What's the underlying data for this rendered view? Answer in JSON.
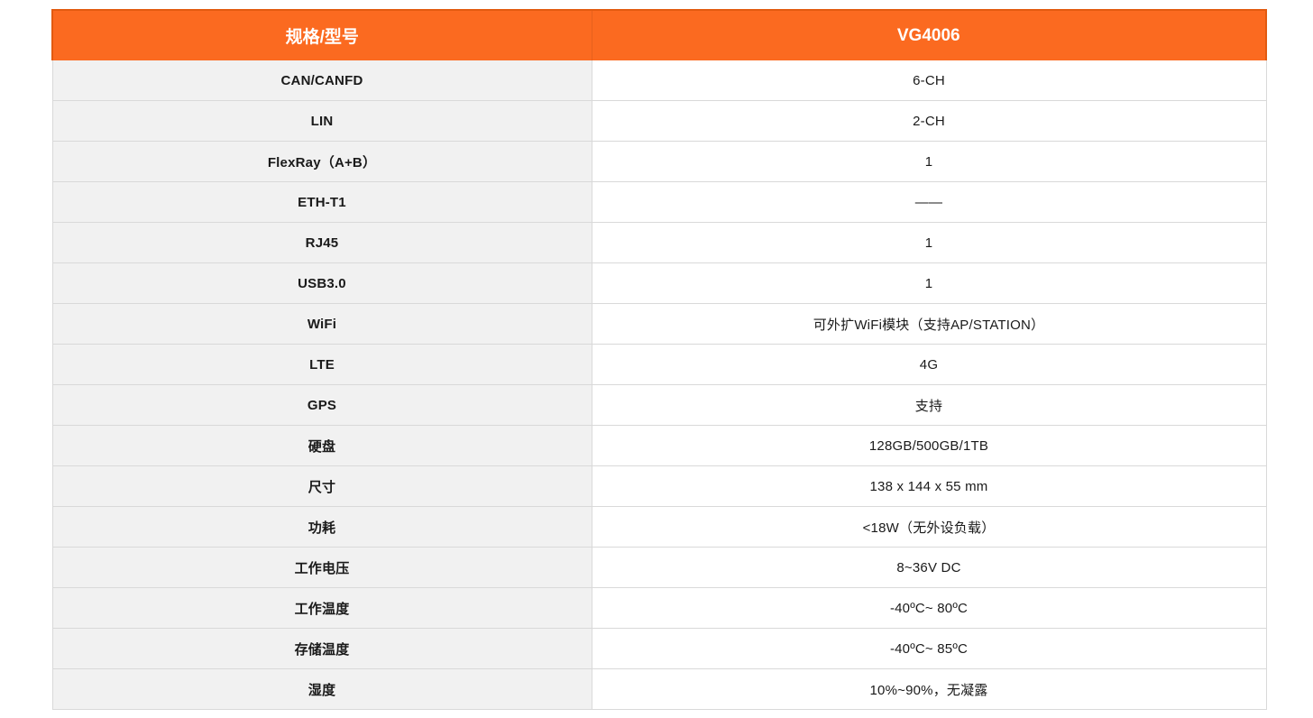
{
  "table": {
    "header": {
      "col1": "规格/型号",
      "col2": "VG4006"
    },
    "rows": [
      {
        "label": "CAN/CANFD",
        "value": "6-CH"
      },
      {
        "label": "LIN",
        "value": "2-CH"
      },
      {
        "label": "FlexRay（A+B）",
        "value": "1"
      },
      {
        "label": "ETH-T1",
        "value": "——"
      },
      {
        "label": "RJ45",
        "value": "1"
      },
      {
        "label": "USB3.0",
        "value": "1"
      },
      {
        "label": "WiFi",
        "value": "可外扩WiFi模块（支持AP/STATION）"
      },
      {
        "label": "LTE",
        "value": "4G"
      },
      {
        "label": "GPS",
        "value": "支持"
      },
      {
        "label": "硬盘",
        "value": "128GB/500GB/1TB"
      },
      {
        "label": "尺寸",
        "value": "138 x 144 x 55 mm"
      },
      {
        "label": "功耗",
        "value": "<18W（无外设负载）"
      },
      {
        "label": "工作电压",
        "value": "8~36V DC"
      },
      {
        "label": "工作温度",
        "value": "-40ºC~ 80ºC"
      },
      {
        "label": "存储温度",
        "value": "-40ºC~ 85ºC"
      },
      {
        "label": "湿度",
        "value": "10%~90%，无凝露"
      }
    ],
    "colors": {
      "header_bg": "#fb6a20",
      "header_border": "#e25a10",
      "header_text": "#ffffff",
      "label_cell_bg": "#f1f1f1",
      "grid_line": "#d9d9d9",
      "text": "#1a1a1a"
    }
  }
}
